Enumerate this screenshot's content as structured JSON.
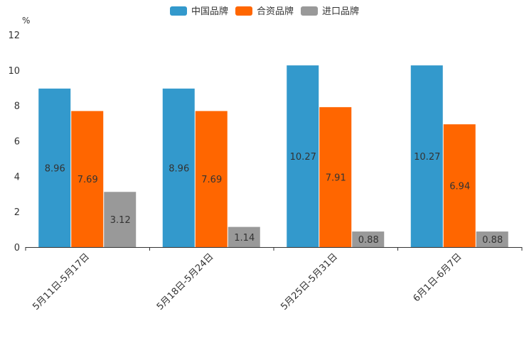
{
  "chart_data": {
    "type": "bar",
    "title": "",
    "xlabel": "",
    "ylabel": "%",
    "ylim": [
      0,
      12
    ],
    "yticks": [
      0,
      2,
      4,
      6,
      8,
      10,
      12
    ],
    "categories": [
      "5月11日-5月17日",
      "5月18日-5月24日",
      "5月25日-5月31日",
      "6月1日-6月7日"
    ],
    "series": [
      {
        "name": "中国品牌",
        "color": "#3399cc",
        "values": [
          8.96,
          8.96,
          10.27,
          10.27
        ]
      },
      {
        "name": "合资品牌",
        "color": "#ff6600",
        "values": [
          7.69,
          7.69,
          7.91,
          6.94
        ]
      },
      {
        "name": "进口品牌",
        "color": "#999999",
        "values": [
          3.12,
          1.14,
          0.88,
          0.88
        ]
      }
    ],
    "data_labels": true,
    "legend_position": "top-center",
    "grid": false
  }
}
